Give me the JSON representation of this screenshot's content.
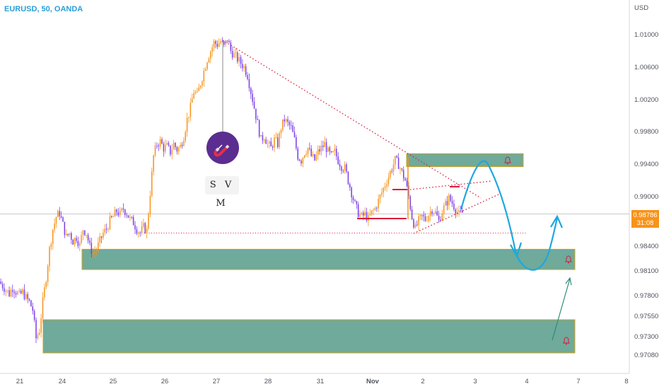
{
  "header": {
    "symbol": "EURUSD, 50, OANDA"
  },
  "axis": {
    "currency": "USD"
  },
  "last_price": {
    "value": "0.98786",
    "countdown": "31:08",
    "color": "#f7931a"
  },
  "logo": {
    "text": "S V M",
    "color": "#5b2d90"
  },
  "colors": {
    "up": "#f7931a",
    "down": "#7b3fe4",
    "zone": "#3f8e7a",
    "zone_border": "#d4a017",
    "arrow": "#1da8e0",
    "trend": "#d81b3c"
  },
  "chart_data": {
    "type": "candlestick",
    "price_ticks": [
      "1.01000",
      "1.00600",
      "1.00200",
      "0.99800",
      "0.99400",
      "0.99000",
      "0.98400",
      "0.98100",
      "0.97800",
      "0.97550",
      "0.97300",
      "0.97080"
    ],
    "date_ticks": [
      "21",
      "24",
      "25",
      "26",
      "27",
      "28",
      "31",
      "Nov",
      "2",
      "3",
      "4",
      "7",
      "8"
    ],
    "ylim": [
      0.9695,
      1.0132
    ],
    "zones": [
      {
        "top": 0.9953,
        "bottom": 0.9937
      },
      {
        "top": 0.9835,
        "bottom": 0.981
      },
      {
        "top": 0.9748,
        "bottom": 0.9707
      }
    ],
    "levels": [
      {
        "price": 0.98786,
        "style": "grey"
      },
      {
        "price": 0.9855,
        "style": "dotted"
      }
    ],
    "path": [
      0.9795,
      0.979,
      0.9785,
      0.978,
      0.9788,
      0.9783,
      0.9778,
      0.9782,
      0.9775,
      0.977,
      0.976,
      0.9725,
      0.9735,
      0.977,
      0.98,
      0.9835,
      0.986,
      0.9875,
      0.988,
      0.9865,
      0.985,
      0.9855,
      0.9845,
      0.985,
      0.984,
      0.986,
      0.9855,
      0.9838,
      0.983,
      0.9835,
      0.9845,
      0.9855,
      0.986,
      0.987,
      0.9875,
      0.9882,
      0.9878,
      0.9885,
      0.988,
      0.9872,
      0.9868,
      0.986,
      0.9855,
      0.9862,
      0.9858,
      0.9905,
      0.995,
      0.9965,
      0.9968,
      0.996,
      0.9962,
      0.9955,
      0.9965,
      0.9958,
      0.9962,
      0.9975,
      0.9995,
      1.001,
      1.003,
      1.0025,
      1.004,
      1.0055,
      1.007,
      1.008,
      1.009,
      1.0088,
      1.0092,
      1.0085,
      1.0095,
      1.008,
      1.0075,
      1.007,
      1.0065,
      1.006,
      1.005,
      1.003,
      1.001,
      0.999,
      0.997,
      0.9975,
      0.9965,
      0.996,
      0.997,
      0.9965,
      0.9985,
      0.9995,
      0.999,
      0.9985,
      0.997,
      0.995,
      0.9945,
      0.9955,
      0.996,
      0.995,
      0.9945,
      0.9955,
      0.996,
      0.9965,
      0.9955,
      0.995,
      0.9955,
      0.9945,
      0.9938,
      0.9935,
      0.992,
      0.9905,
      0.989,
      0.988,
      0.9875,
      0.9878,
      0.9872,
      0.988,
      0.9885,
      0.9895,
      0.9905,
      0.9915,
      0.9925,
      0.9935,
      0.9945,
      0.994,
      0.993,
      0.992,
      0.99,
      0.9875,
      0.986,
      0.987,
      0.9875,
      0.9872,
      0.9878,
      0.9885,
      0.988,
      0.987,
      0.9882,
      0.989,
      0.9898,
      0.9892,
      0.9885,
      0.9878,
      0.988
    ]
  }
}
